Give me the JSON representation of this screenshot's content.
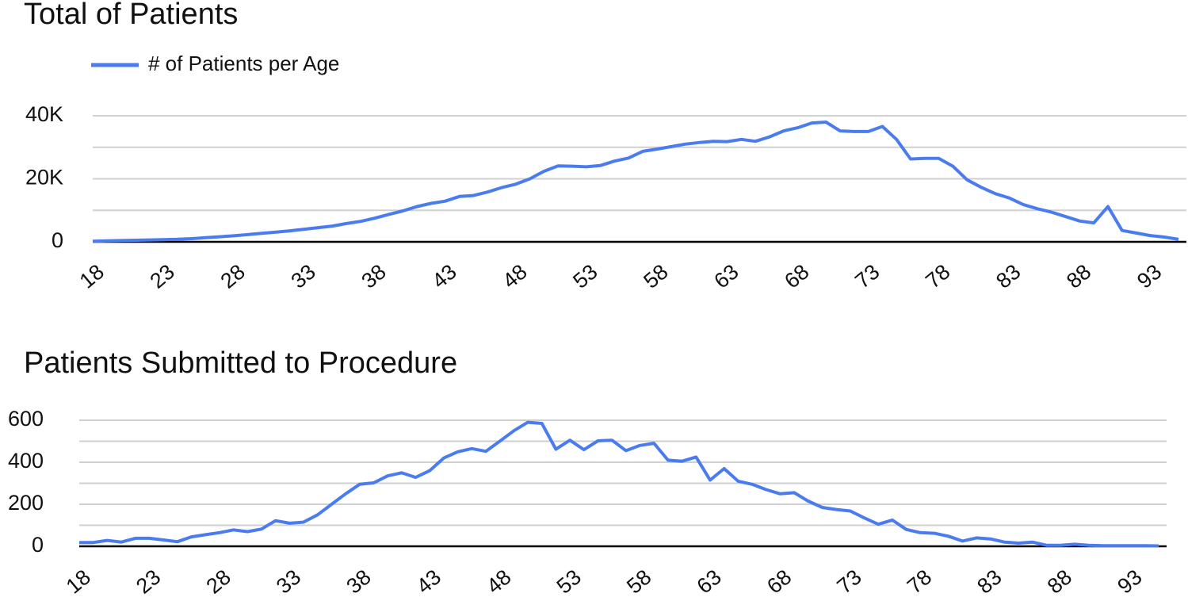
{
  "chart_data": [
    {
      "type": "line",
      "title": "Total of Patients",
      "x": [
        18,
        19,
        20,
        21,
        22,
        23,
        24,
        25,
        26,
        27,
        28,
        29,
        30,
        31,
        32,
        33,
        34,
        35,
        36,
        37,
        38,
        39,
        40,
        41,
        42,
        43,
        44,
        45,
        46,
        47,
        48,
        49,
        50,
        51,
        52,
        53,
        54,
        55,
        56,
        57,
        58,
        59,
        60,
        61,
        62,
        63,
        64,
        65,
        66,
        67,
        68,
        69,
        70,
        71,
        72,
        73,
        74,
        75,
        76,
        77,
        78,
        79,
        80,
        81,
        82,
        83,
        84,
        85,
        86,
        87,
        88,
        89,
        90,
        91,
        92,
        93,
        94,
        95
      ],
      "series": [
        {
          "name": "# of Patients per Age",
          "color": "#4a7cf0",
          "values": [
            200,
            300,
            400,
            500,
            600,
            700,
            800,
            1000,
            1300,
            1600,
            1900,
            2300,
            2700,
            3100,
            3500,
            4000,
            4500,
            5000,
            5800,
            6500,
            7500,
            8700,
            9800,
            11200,
            12200,
            12900,
            14400,
            14700,
            15800,
            17200,
            18300,
            20000,
            22400,
            24100,
            24000,
            23800,
            24200,
            25600,
            26600,
            28700,
            29400,
            30200,
            31000,
            31500,
            31900,
            31800,
            32500,
            31900,
            33300,
            35200,
            36200,
            37700,
            38000,
            35200,
            35000,
            35000,
            36600,
            32500,
            26300,
            26500,
            26500,
            24000,
            19700,
            17300,
            15300,
            13900,
            11800,
            10500,
            9400,
            8000,
            6600,
            6000,
            11200,
            3600,
            2800,
            2000,
            1500,
            800
          ]
        }
      ],
      "xlim": [
        18,
        95
      ],
      "xticks": [
        18,
        23,
        28,
        33,
        38,
        43,
        48,
        53,
        58,
        63,
        68,
        73,
        78,
        83,
        88,
        93
      ],
      "ylim": [
        0,
        40000
      ],
      "yticks": [
        0,
        {
          "value": 20000,
          "label": "20K"
        },
        {
          "value": 40000,
          "label": "40K"
        }
      ],
      "minor_yticks": [
        10000,
        30000
      ],
      "grid": true,
      "legend": "top-left"
    },
    {
      "type": "line",
      "title": "Patients Submitted to Procedure",
      "x": [
        18,
        19,
        20,
        21,
        22,
        23,
        24,
        25,
        26,
        27,
        28,
        29,
        30,
        31,
        32,
        33,
        34,
        35,
        36,
        37,
        38,
        39,
        40,
        41,
        42,
        43,
        44,
        45,
        46,
        47,
        48,
        49,
        50,
        51,
        52,
        53,
        54,
        55,
        56,
        57,
        58,
        59,
        60,
        61,
        62,
        63,
        64,
        65,
        66,
        67,
        68,
        69,
        70,
        71,
        72,
        73,
        74,
        75,
        76,
        77,
        78,
        79,
        80,
        81,
        82,
        83,
        84,
        85,
        86,
        87,
        88,
        89,
        90,
        91,
        92,
        93,
        94,
        95
      ],
      "series": [
        {
          "color": "#4a7cf0",
          "values": [
            18,
            18,
            28,
            20,
            38,
            38,
            30,
            22,
            45,
            55,
            65,
            78,
            70,
            82,
            122,
            110,
            115,
            150,
            200,
            250,
            295,
            302,
            335,
            350,
            328,
            360,
            420,
            450,
            465,
            452,
            500,
            550,
            590,
            585,
            462,
            505,
            460,
            502,
            505,
            455,
            480,
            490,
            410,
            405,
            425,
            315,
            370,
            310,
            295,
            270,
            250,
            255,
            215,
            185,
            175,
            168,
            135,
            105,
            125,
            80,
            65,
            62,
            48,
            25,
            40,
            35,
            20,
            15,
            20,
            5,
            5,
            10,
            5,
            3,
            3,
            3,
            3,
            2
          ]
        }
      ],
      "xlim": [
        18,
        95
      ],
      "xticks": [
        18,
        23,
        28,
        33,
        38,
        43,
        48,
        53,
        58,
        63,
        68,
        73,
        78,
        83,
        88,
        93
      ],
      "ylim": [
        0,
        600
      ],
      "yticks": [
        0,
        200,
        400,
        600
      ],
      "minor_yticks": [
        100,
        300,
        500
      ],
      "grid": true
    }
  ]
}
